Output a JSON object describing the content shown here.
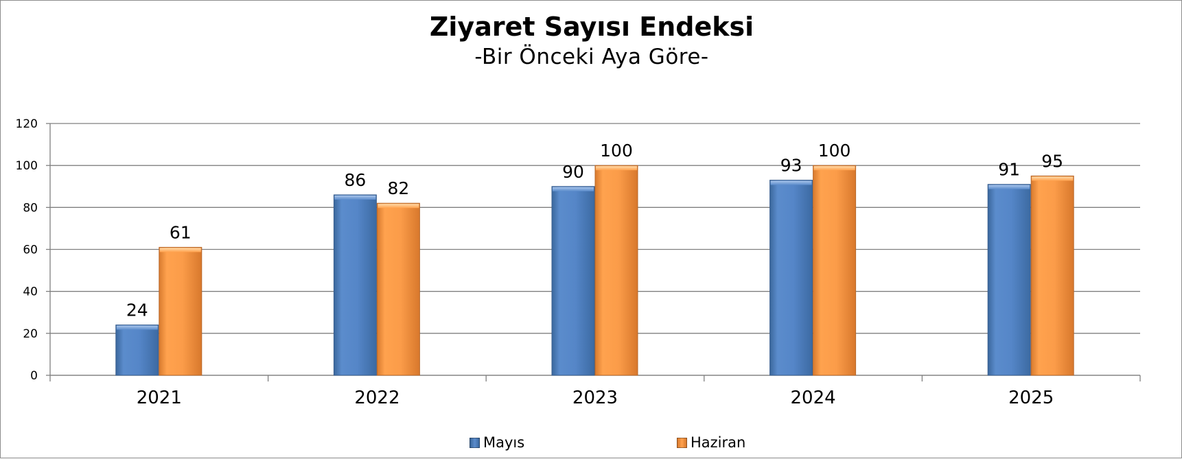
{
  "chart_data": {
    "type": "bar",
    "title": "Ziyaret Sayısı Endeksi",
    "subtitle": "-Bir Önceki Aya Göre-",
    "categories": [
      "2021",
      "2022",
      "2023",
      "2024",
      "2025"
    ],
    "series": [
      {
        "name": "Mayıs",
        "color": "#4f81bd",
        "values": [
          24,
          86,
          90,
          93,
          91
        ]
      },
      {
        "name": "Haziran",
        "color": "#f79646",
        "values": [
          61,
          82,
          100,
          100,
          95
        ]
      }
    ],
    "ylim": [
      0,
      120
    ],
    "yticks": [
      "0",
      "20",
      "40",
      "60",
      "80",
      "100",
      "120"
    ],
    "grid": true,
    "legend_position": "bottom"
  }
}
